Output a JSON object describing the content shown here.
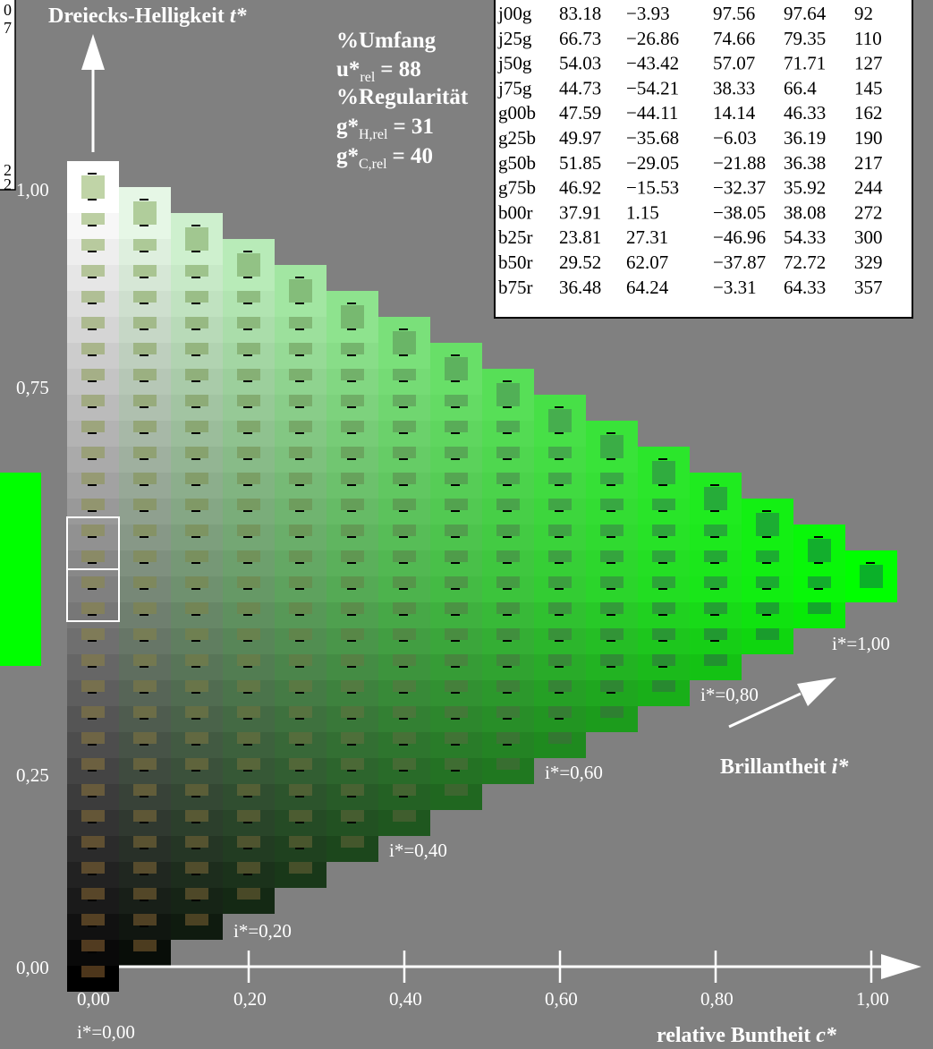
{
  "title_left": {
    "main": "Dreiecks-Helligkeit ",
    "var": "t*"
  },
  "stats": {
    "umfang_label": "%Umfang",
    "u_prefix": "u*",
    "u_sub": "rel",
    "u_value": "= 88",
    "regularitaet_label": "%Regularität",
    "gh_prefix": "g*",
    "gh_sub": "H,rel",
    "gh_value": "= 31",
    "gc_prefix": "g*",
    "gc_sub": "C,rel",
    "gc_value": "= 40"
  },
  "y_ticks": [
    "1,00",
    "0,75",
    "0,25",
    "0,00"
  ],
  "x_ticks": [
    "0,00",
    "0,20",
    "0,40",
    "0,60",
    "0,80",
    "1,00"
  ],
  "i_labels": [
    "i*=0,00",
    "i*=0,20",
    "i*=0,40",
    "i*=0,60",
    "i*=0,80",
    "i*=1,00"
  ],
  "x_axis_title": {
    "main": "relative Buntheit ",
    "var": "c*"
  },
  "brillanz_label": {
    "main": "Brillantheit ",
    "var": "i*"
  },
  "left_edge_digits": [
    "0",
    "7",
    "2",
    "2"
  ],
  "table": {
    "rows": [
      [
        "j00g",
        "83.18",
        "−3.93",
        "97.56",
        "97.64",
        "92"
      ],
      [
        "j25g",
        "66.73",
        "−26.86",
        "74.66",
        "79.35",
        "110"
      ],
      [
        "j50g",
        "54.03",
        "−43.42",
        "57.07",
        "71.71",
        "127"
      ],
      [
        "j75g",
        "44.73",
        "−54.21",
        "38.33",
        "66.4",
        "145"
      ],
      [
        "g00b",
        "47.59",
        "−44.11",
        "14.14",
        "46.33",
        "162"
      ],
      [
        "g25b",
        "49.97",
        "−35.68",
        "−6.03",
        "36.19",
        "190"
      ],
      [
        "g50b",
        "51.85",
        "−29.05",
        "−21.88",
        "36.38",
        "217"
      ],
      [
        "g75b",
        "46.92",
        "−15.53",
        "−32.37",
        "35.92",
        "244"
      ],
      [
        "b00r",
        "37.91",
        "1.15",
        "−38.05",
        "38.08",
        "272"
      ],
      [
        "b25r",
        "23.81",
        "27.31",
        "−46.96",
        "54.33",
        "300"
      ],
      [
        "b50r",
        "29.52",
        "62.07",
        "−37.87",
        "72.72",
        "329"
      ],
      [
        "b75r",
        "36.48",
        "64.24",
        "−3.31",
        "64.33",
        "357"
      ]
    ]
  },
  "colors": {
    "background": "#808080",
    "green_swatch": "#00ff00",
    "axis": "#ffffff"
  }
}
